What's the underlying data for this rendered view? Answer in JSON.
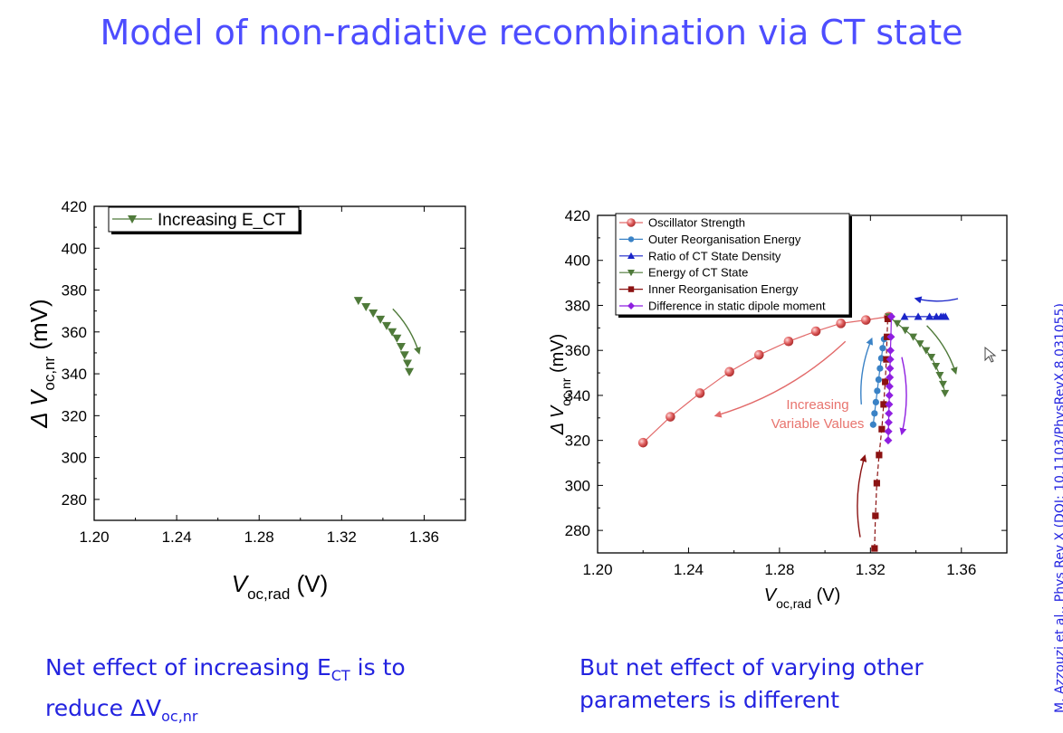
{
  "slide": {
    "title": "Model of non-radiative recombination via CT state",
    "citation": "M. Azzouzi et al., Phys Rev X (DOI: 10.1103/PhysRevX.8.031055)",
    "caption_left": {
      "prefix": "Net effect of increasing E",
      "sub": "CT",
      "suffix": " is to",
      "line2_prefix": "reduce ΔV",
      "line2_sub": "oc,nr"
    },
    "caption_right": {
      "line1": "But net effect of varying other",
      "line2": "parameters is different"
    }
  },
  "chart_data": [
    {
      "type": "scatter",
      "xlabel": {
        "main": "V",
        "sub": "oc,rad",
        "unit": " (V)"
      },
      "ylabel": {
        "main": "Δ V",
        "sub": "oc,nr",
        "unit": " (mV)"
      },
      "xlim": [
        1.2,
        1.38
      ],
      "ylim": [
        270,
        420
      ],
      "xticks": [
        "1.20",
        "1.24",
        "1.28",
        "1.32",
        "1.36"
      ],
      "yticks": [
        "280",
        "300",
        "320",
        "340",
        "360",
        "380",
        "400",
        "420"
      ],
      "legend_position": "top-left",
      "series": [
        {
          "name": "Increasing E_CT",
          "color": "#4f7a3a",
          "marker": "triangle-down",
          "x": [
            1.3281,
            1.3318,
            1.3353,
            1.3388,
            1.3418,
            1.3445,
            1.3468,
            1.3488,
            1.3505,
            1.3519,
            1.3528
          ],
          "y": [
            375,
            372,
            369,
            366,
            363,
            360,
            357,
            353,
            349,
            345,
            341
          ]
        }
      ],
      "arrows": [
        {
          "color": "#4f7a3a",
          "from": [
            1.3448,
            371
          ],
          "to": [
            1.3575,
            350
          ]
        }
      ]
    },
    {
      "type": "scatter",
      "xlabel": {
        "main": "V",
        "sub": "oc,rad",
        "unit": " (V)"
      },
      "ylabel": {
        "main": "Δ V",
        "sub": "oc,nr",
        "unit": " (mV)"
      },
      "xlim": [
        1.2,
        1.38
      ],
      "ylim": [
        270,
        420
      ],
      "xticks": [
        "1.20",
        "1.24",
        "1.28",
        "1.32",
        "1.36"
      ],
      "yticks": [
        "280",
        "300",
        "320",
        "340",
        "360",
        "380",
        "400",
        "420"
      ],
      "legend_position": "top-left",
      "annotation": {
        "line1": "Increasing",
        "line2": "Variable Values",
        "color": "#e8746e"
      },
      "series": [
        {
          "name": "Oscillator Strength",
          "color": "#e26a6a",
          "marker": "sphere",
          "x": [
            1.22,
            1.232,
            1.245,
            1.258,
            1.271,
            1.284,
            1.296,
            1.307,
            1.318,
            1.328
          ],
          "y": [
            319,
            330.5,
            341,
            350.5,
            358,
            364,
            368.5,
            372,
            373.5,
            375
          ]
        },
        {
          "name": "Outer Reorganisation Energy",
          "color": "#3a82c6",
          "marker": "circle",
          "x": [
            1.3212,
            1.3218,
            1.3224,
            1.323,
            1.3236,
            1.3242,
            1.3248,
            1.3254,
            1.326
          ],
          "y": [
            327,
            332,
            337,
            342,
            347,
            352,
            356.5,
            361,
            365
          ]
        },
        {
          "name": "Ratio of CT State Density",
          "color": "#1a25c9",
          "marker": "triangle-up",
          "x": [
            1.335,
            1.341,
            1.346,
            1.349,
            1.351,
            1.352,
            1.353
          ],
          "y": [
            375,
            375,
            375,
            375,
            375,
            375,
            375
          ]
        },
        {
          "name": "Energy of CT State",
          "color": "#4f7a3a",
          "marker": "triangle-down",
          "x": [
            1.3281,
            1.3318,
            1.3353,
            1.3388,
            1.3418,
            1.3445,
            1.3468,
            1.3488,
            1.3505,
            1.3519,
            1.3528
          ],
          "y": [
            375,
            372,
            369,
            366,
            363,
            360,
            357,
            353,
            349,
            345,
            341
          ]
        },
        {
          "name": "Inner Reorganisation Energy",
          "color": "#8b1212",
          "marker": "square",
          "x": [
            1.3218,
            1.3222,
            1.3228,
            1.3238,
            1.325,
            1.3258,
            1.3265,
            1.327,
            1.3273,
            1.3276
          ],
          "y": [
            272,
            286.5,
            301,
            313.5,
            325,
            336,
            346,
            356,
            366,
            374
          ]
        },
        {
          "name": "Difference in static dipole moment",
          "color": "#8f1fe0",
          "marker": "diamond",
          "x": [
            1.3278,
            1.3279,
            1.328,
            1.3281,
            1.3282,
            1.3283,
            1.3284,
            1.3285,
            1.3286,
            1.3287,
            1.3288,
            1.329,
            1.3292
          ],
          "y": [
            320,
            324,
            328,
            332,
            336,
            340,
            344,
            348,
            352,
            356,
            360,
            366,
            375
          ]
        }
      ],
      "arrows": [
        {
          "color": "#e26a6a",
          "from": [
            1.309,
            364
          ],
          "to": [
            1.252,
            331
          ]
        },
        {
          "color": "#3a82c6",
          "from": [
            1.316,
            336
          ],
          "to": [
            1.3205,
            365
          ]
        },
        {
          "color": "#1a25c9",
          "from": [
            1.3585,
            383
          ],
          "to": [
            1.34,
            383
          ]
        },
        {
          "color": "#4f7a3a",
          "from": [
            1.3448,
            371
          ],
          "to": [
            1.3575,
            350
          ]
        },
        {
          "color": "#8b1212",
          "from": [
            1.3155,
            277
          ],
          "to": [
            1.3175,
            313
          ]
        },
        {
          "color": "#8f1fe0",
          "from": [
            1.3338,
            357
          ],
          "to": [
            1.3338,
            323
          ]
        }
      ]
    }
  ]
}
